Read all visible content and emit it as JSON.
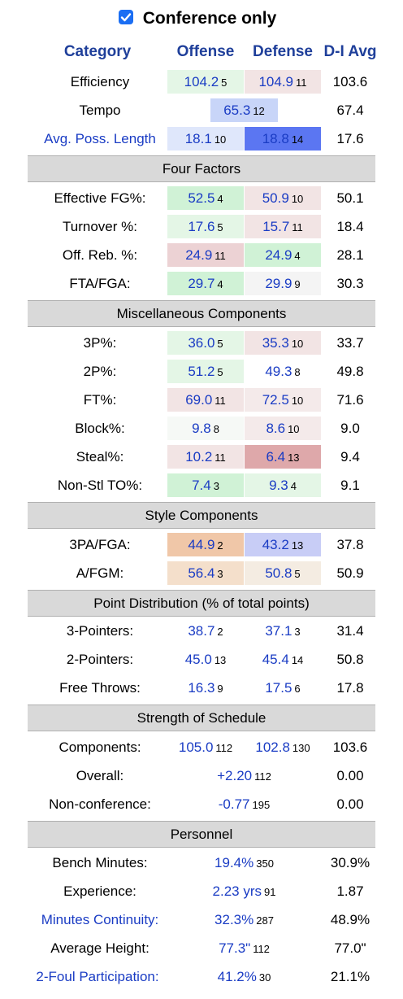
{
  "filter": {
    "checkbox_label": "Conference only",
    "checked": true
  },
  "header": {
    "category": "Category",
    "offense": "Offense",
    "defense": "Defense",
    "avg": "D-I Avg"
  },
  "sections": {
    "four_factors": "Four Factors",
    "misc": "Miscellaneous Components",
    "style": "Style Components",
    "point_dist": "Point Distribution (% of total points)",
    "sos": "Strength of Schedule",
    "personnel": "Personnel"
  },
  "colors": {
    "green_light": "#e4f6e6",
    "green": "#d0f2d6",
    "pink_light": "#f2e4e4",
    "pink": "#ecd2d4",
    "pink_dark": "#dea8aa",
    "blue_light": "#dfe7fb",
    "blue_mid": "#c8d5f8",
    "blue_dark": "#5b76f2",
    "orange": "#f0c7a8",
    "orange_light": "#f4dfcb",
    "cream": "#f4ece2",
    "neutral": "#f4f4f4",
    "header_text": "#1f3f9a",
    "link_text": "#1a3cc4",
    "section_bg": "#d9d9d9"
  },
  "rows": {
    "efficiency": {
      "label": "Efficiency",
      "off": "104.2",
      "off_rank": "5",
      "def": "104.9",
      "def_rank": "11",
      "avg": "103.6"
    },
    "tempo": {
      "label": "Tempo",
      "val": "65.3",
      "rank": "12",
      "avg": "67.4"
    },
    "poss_length": {
      "label": "Avg. Poss. Length",
      "off": "18.1",
      "off_rank": "10",
      "def": "18.8",
      "def_rank": "14",
      "avg": "17.6"
    },
    "efg": {
      "label": "Effective FG%:",
      "off": "52.5",
      "off_rank": "4",
      "def": "50.9",
      "def_rank": "10",
      "avg": "50.1"
    },
    "to": {
      "label": "Turnover %:",
      "off": "17.6",
      "off_rank": "5",
      "def": "15.7",
      "def_rank": "11",
      "avg": "18.4"
    },
    "oreb": {
      "label": "Off. Reb. %:",
      "off": "24.9",
      "off_rank": "11",
      "def": "24.9",
      "def_rank": "4",
      "avg": "28.1"
    },
    "fta": {
      "label": "FTA/FGA:",
      "off": "29.7",
      "off_rank": "4",
      "def": "29.9",
      "def_rank": "9",
      "avg": "30.3"
    },
    "p3": {
      "label": "3P%:",
      "off": "36.0",
      "off_rank": "5",
      "def": "35.3",
      "def_rank": "10",
      "avg": "33.7"
    },
    "p2": {
      "label": "2P%:",
      "off": "51.2",
      "off_rank": "5",
      "def": "49.3",
      "def_rank": "8",
      "avg": "49.8"
    },
    "ft": {
      "label": "FT%:",
      "off": "69.0",
      "off_rank": "11",
      "def": "72.5",
      "def_rank": "10",
      "avg": "71.6"
    },
    "blk": {
      "label": "Block%:",
      "off": "9.8",
      "off_rank": "8",
      "def": "8.6",
      "def_rank": "10",
      "avg": "9.0"
    },
    "stl": {
      "label": "Steal%:",
      "off": "10.2",
      "off_rank": "11",
      "def": "6.4",
      "def_rank": "13",
      "avg": "9.4"
    },
    "nstl": {
      "label": "Non-Stl TO%:",
      "off": "7.4",
      "off_rank": "3",
      "def": "9.3",
      "def_rank": "4",
      "avg": "9.1"
    },
    "pa3": {
      "label": "3PA/FGA:",
      "off": "44.9",
      "off_rank": "2",
      "def": "43.2",
      "def_rank": "13",
      "avg": "37.8"
    },
    "afgm": {
      "label": "A/FGM:",
      "off": "56.4",
      "off_rank": "3",
      "def": "50.8",
      "def_rank": "5",
      "avg": "50.9"
    },
    "pts3": {
      "label": "3-Pointers:",
      "off": "38.7",
      "off_rank": "2",
      "def": "37.1",
      "def_rank": "3",
      "avg": "31.4"
    },
    "pts2": {
      "label": "2-Pointers:",
      "off": "45.0",
      "off_rank": "13",
      "def": "45.4",
      "def_rank": "14",
      "avg": "50.8"
    },
    "ptsft": {
      "label": "Free Throws:",
      "off": "16.3",
      "off_rank": "9",
      "def": "17.5",
      "def_rank": "6",
      "avg": "17.8"
    },
    "comp": {
      "label": "Components:",
      "off": "105.0",
      "off_rank": "112",
      "def": "102.8",
      "def_rank": "130",
      "avg": "103.6"
    },
    "overall": {
      "label": "Overall:",
      "val": "+2.20",
      "rank": "112",
      "avg": "0.00"
    },
    "noncon": {
      "label": "Non-conference:",
      "val": "-0.77",
      "rank": "195",
      "avg": "0.00"
    },
    "bench": {
      "label": "Bench Minutes:",
      "val": "19.4%",
      "rank": "350",
      "avg": "30.9%"
    },
    "exp": {
      "label": "Experience:",
      "val": "2.23 yrs",
      "rank": "91",
      "avg": "1.87"
    },
    "cont": {
      "label": "Minutes Continuity:",
      "val": "32.3%",
      "rank": "287",
      "avg": "48.9%"
    },
    "height": {
      "label": "Average Height:",
      "val": "77.3\"",
      "rank": "112",
      "avg": "77.0\""
    },
    "foul2": {
      "label": "2-Foul Participation:",
      "val": "41.2%",
      "rank": "30",
      "avg": "21.1%"
    }
  }
}
